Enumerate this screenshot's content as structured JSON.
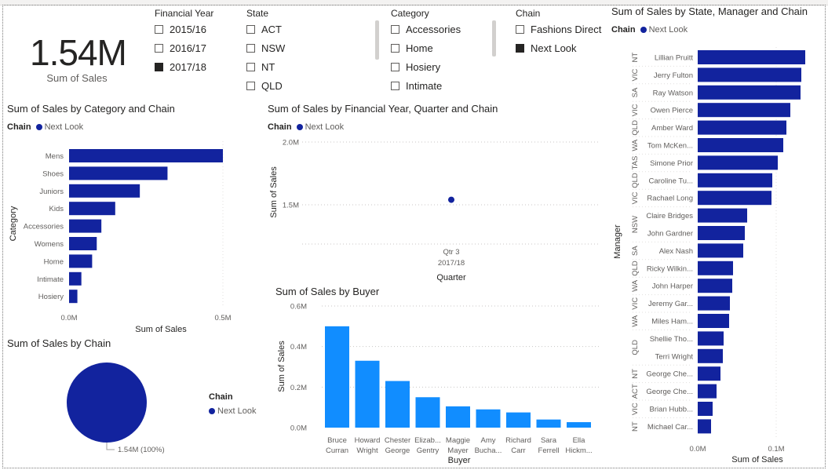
{
  "kpi": {
    "value": "1.54M",
    "label": "Sum of Sales"
  },
  "slicers": {
    "financial_year": {
      "title": "Financial Year",
      "items": [
        {
          "label": "2015/16",
          "checked": false
        },
        {
          "label": "2016/17",
          "checked": false
        },
        {
          "label": "2017/18",
          "checked": true
        }
      ]
    },
    "state": {
      "title": "State",
      "items": [
        {
          "label": "ACT",
          "checked": false
        },
        {
          "label": "NSW",
          "checked": false
        },
        {
          "label": "NT",
          "checked": false
        },
        {
          "label": "QLD",
          "checked": false
        }
      ]
    },
    "category": {
      "title": "Category",
      "items": [
        {
          "label": "Accessories",
          "checked": false
        },
        {
          "label": "Home",
          "checked": false
        },
        {
          "label": "Hosiery",
          "checked": false
        },
        {
          "label": "Intimate",
          "checked": false
        }
      ]
    },
    "chain": {
      "title": "Chain",
      "items": [
        {
          "label": "Fashions Direct",
          "checked": false
        },
        {
          "label": "Next Look",
          "checked": true
        }
      ]
    }
  },
  "colors": {
    "dark_blue": "#12239e",
    "light_blue": "#118dff",
    "checked": "#252423"
  },
  "chart_data": [
    {
      "id": "category_chain",
      "type": "bar",
      "orientation": "horizontal",
      "title": "Sum of Sales by Category and Chain",
      "legend_title": "Chain",
      "xlabel": "Sum of Sales",
      "ylabel": "Category",
      "xlim": [
        0,
        0.5
      ],
      "x_ticks": [
        "0.0M",
        "0.5M"
      ],
      "categories": [
        "Mens",
        "Shoes",
        "Juniors",
        "Kids",
        "Accessories",
        "Womens",
        "Home",
        "Intimate",
        "Hosiery"
      ],
      "series": [
        {
          "name": "Next Look",
          "values": [
            0.5,
            0.32,
            0.23,
            0.15,
            0.105,
            0.09,
            0.075,
            0.04,
            0.027
          ]
        }
      ],
      "unit": "M"
    },
    {
      "id": "year_quarter_chain",
      "type": "scatter",
      "title": "Sum of Sales by Financial Year, Quarter and Chain",
      "legend_title": "Chain",
      "xlabel": "Quarter",
      "ylabel": "Sum of Sales",
      "y_ticks": [
        "2.0M",
        "1.5M"
      ],
      "ylim": [
        1.5,
        2.0
      ],
      "categories": [
        [
          "Qtr 3",
          "2017/18"
        ]
      ],
      "series": [
        {
          "name": "Next Look",
          "values": [
            1.54
          ]
        }
      ],
      "unit": "M"
    },
    {
      "id": "chain_pie",
      "type": "pie",
      "title": "Sum of Sales by Chain",
      "legend_title": "Chain",
      "categories": [
        "Next Look"
      ],
      "values": [
        1.54
      ],
      "data_label": "1.54M (100%)",
      "unit": "M"
    },
    {
      "id": "buyer",
      "type": "bar",
      "orientation": "vertical",
      "title": "Sum of Sales by Buyer",
      "xlabel": "Buyer",
      "ylabel": "Sum of Sales",
      "ylim": [
        0,
        0.6
      ],
      "y_ticks": [
        "0.6M",
        "0.4M",
        "0.2M",
        "0.0M"
      ],
      "categories": [
        [
          "Bruce",
          "Curran"
        ],
        [
          "Howard",
          "Wright"
        ],
        [
          "Chester",
          "George"
        ],
        [
          "Elizab...",
          "Gentry"
        ],
        [
          "Maggie",
          "Mayer"
        ],
        [
          "Amy",
          "Bucha..."
        ],
        [
          "Richard",
          "Carr"
        ],
        [
          "Sara",
          "Ferrell"
        ],
        [
          "Ella",
          "Hickm..."
        ]
      ],
      "values": [
        0.5,
        0.33,
        0.23,
        0.15,
        0.105,
        0.09,
        0.075,
        0.04,
        0.027
      ],
      "unit": "M"
    },
    {
      "id": "state_manager_chain",
      "type": "bar",
      "orientation": "horizontal",
      "title": "Sum of Sales by State, Manager and Chain",
      "legend_title": "Chain",
      "xlabel": "Sum of Sales",
      "ylabel": "Manager",
      "xlim": [
        0,
        0.14
      ],
      "x_ticks": [
        "0.0M",
        "0.1M"
      ],
      "groups": [
        {
          "state": "NT",
          "managers": [
            [
              "Lillian Pruitt",
              0.137
            ]
          ]
        },
        {
          "state": "VIC",
          "managers": [
            [
              "Jerry Fulton",
              0.132
            ]
          ]
        },
        {
          "state": "SA",
          "managers": [
            [
              "Ray Watson",
              0.131
            ]
          ]
        },
        {
          "state": "VIC",
          "managers": [
            [
              "Owen Pierce",
              0.118
            ]
          ]
        },
        {
          "state": "QLD",
          "managers": [
            [
              "Amber Ward",
              0.113
            ]
          ]
        },
        {
          "state": "WA",
          "managers": [
            [
              "Tom McKen...",
              0.109
            ]
          ]
        },
        {
          "state": "TAS",
          "managers": [
            [
              "Simone Prior",
              0.102
            ]
          ]
        },
        {
          "state": "QLD",
          "managers": [
            [
              "Caroline Tu...",
              0.095
            ]
          ]
        },
        {
          "state": "VIC",
          "managers": [
            [
              "Rachael Long",
              0.094
            ]
          ]
        },
        {
          "state": "NSW",
          "managers": [
            [
              "Claire Bridges",
              0.063
            ],
            [
              "John Gardner",
              0.06
            ]
          ]
        },
        {
          "state": "SA",
          "managers": [
            [
              "Alex Nash",
              0.058
            ]
          ]
        },
        {
          "state": "QLD",
          "managers": [
            [
              "Ricky Wilkin...",
              0.045
            ]
          ]
        },
        {
          "state": "WA",
          "managers": [
            [
              "John Harper",
              0.044
            ]
          ]
        },
        {
          "state": "VIC",
          "managers": [
            [
              "Jeremy Gar...",
              0.041
            ]
          ]
        },
        {
          "state": "WA",
          "managers": [
            [
              "Miles Ham...",
              0.04
            ]
          ]
        },
        {
          "state": "QLD",
          "managers": [
            [
              "Shellie Tho...",
              0.033
            ],
            [
              "Terri Wright",
              0.032
            ]
          ]
        },
        {
          "state": "NT",
          "managers": [
            [
              "George Che...",
              0.029
            ]
          ]
        },
        {
          "state": "ACT",
          "managers": [
            [
              "George Che...",
              0.024
            ]
          ]
        },
        {
          "state": "VIC",
          "managers": [
            [
              "Brian Hubb...",
              0.019
            ]
          ]
        },
        {
          "state": "NT",
          "managers": [
            [
              "Michael Car...",
              0.017
            ]
          ]
        }
      ],
      "series": [
        {
          "name": "Next Look"
        }
      ],
      "unit": "M"
    }
  ]
}
